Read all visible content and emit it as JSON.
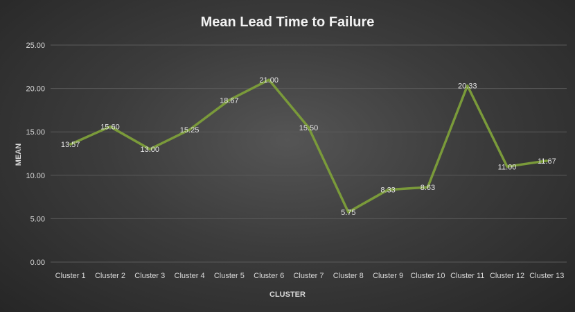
{
  "chart_data": {
    "type": "line",
    "title": "Mean Lead Time to Failure",
    "xlabel": "CLUSTER",
    "ylabel": "MEAN",
    "categories": [
      "Cluster 1",
      "Cluster 2",
      "Cluster 3",
      "Cluster 4",
      "Cluster 5",
      "Cluster 6",
      "Cluster 7",
      "Cluster 8",
      "Cluster 9",
      "Cluster 10",
      "Cluster 11",
      "Cluster 12",
      "Cluster 13"
    ],
    "values": [
      13.57,
      15.6,
      13.0,
      15.25,
      18.67,
      21.0,
      15.5,
      5.75,
      8.33,
      8.63,
      20.33,
      11.0,
      11.67
    ],
    "value_labels": [
      "13.57",
      "15.60",
      "13.00",
      "15.25",
      "18.67",
      "21.00",
      "15.50",
      "5.75",
      "8.33",
      "8.63",
      "20.33",
      "11.00",
      "11.67"
    ],
    "ylim": [
      0,
      25
    ],
    "yticks": [
      "0.00",
      "5.00",
      "10.00",
      "15.00",
      "20.00",
      "25.00"
    ],
    "ytick_values": [
      0,
      5,
      10,
      15,
      20,
      25
    ],
    "grid": true,
    "legend": "none",
    "colors": {
      "line": "#7a9a3a",
      "background": "#3c3c3c",
      "text": "#d9d9d9"
    }
  }
}
